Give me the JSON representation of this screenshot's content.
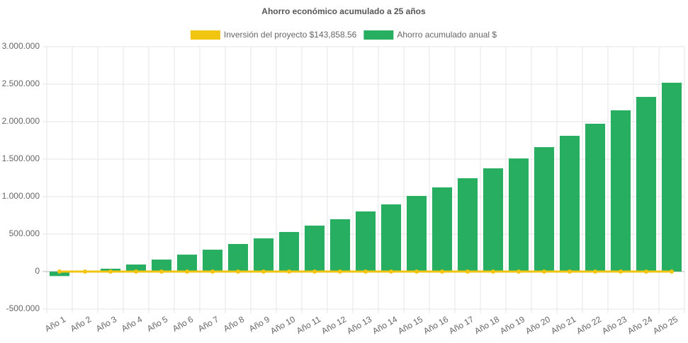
{
  "chart_data": {
    "type": "bar",
    "title": "Ahorro económico acumulado a 25 años",
    "categories": [
      "Año 1",
      "Año 2",
      "Año 3",
      "Año 4",
      "Año 5",
      "Año 6",
      "Año 7",
      "Año 8",
      "Año 9",
      "Año 10",
      "Año 11",
      "Año 12",
      "Año 13",
      "Año 14",
      "Año 15",
      "Año 16",
      "Año 17",
      "Año 18",
      "Año 19",
      "Año 20",
      "Año 21",
      "Año 22",
      "Año 23",
      "Año 24",
      "Año 25"
    ],
    "series": [
      {
        "name": "Inversión del proyecto $143,858.56",
        "type": "line",
        "color": "#f1c40f",
        "values": [
          0,
          0,
          0,
          0,
          0,
          0,
          0,
          0,
          0,
          0,
          0,
          0,
          0,
          0,
          0,
          0,
          0,
          0,
          0,
          0,
          0,
          0,
          0,
          0,
          0
        ]
      },
      {
        "name": "Ahorro acumulado anual $",
        "type": "bar",
        "color": "#27ae60",
        "values": [
          -60000,
          5000,
          38000,
          94000,
          160000,
          226000,
          292000,
          368000,
          443000,
          528000,
          613000,
          698000,
          802000,
          896000,
          1009000,
          1123000,
          1245000,
          1377000,
          1509000,
          1660000,
          1811000,
          1972000,
          2151000,
          2330000,
          2519000
        ]
      }
    ],
    "ylim": [
      -500000,
      3000000
    ],
    "yticks": [
      {
        "value": -500000,
        "label": "-500.000"
      },
      0,
      {
        "value": 500000,
        "label": "500.000"
      },
      {
        "value": 1000000,
        "label": "1.000.000"
      },
      {
        "value": 1500000,
        "label": "1.500.000"
      },
      {
        "value": 2000000,
        "label": "2.000.000"
      },
      {
        "value": 2500000,
        "label": "2.500.000"
      },
      {
        "value": 3000000,
        "label": "3.000.000"
      }
    ],
    "grid": true,
    "legend": "top"
  }
}
